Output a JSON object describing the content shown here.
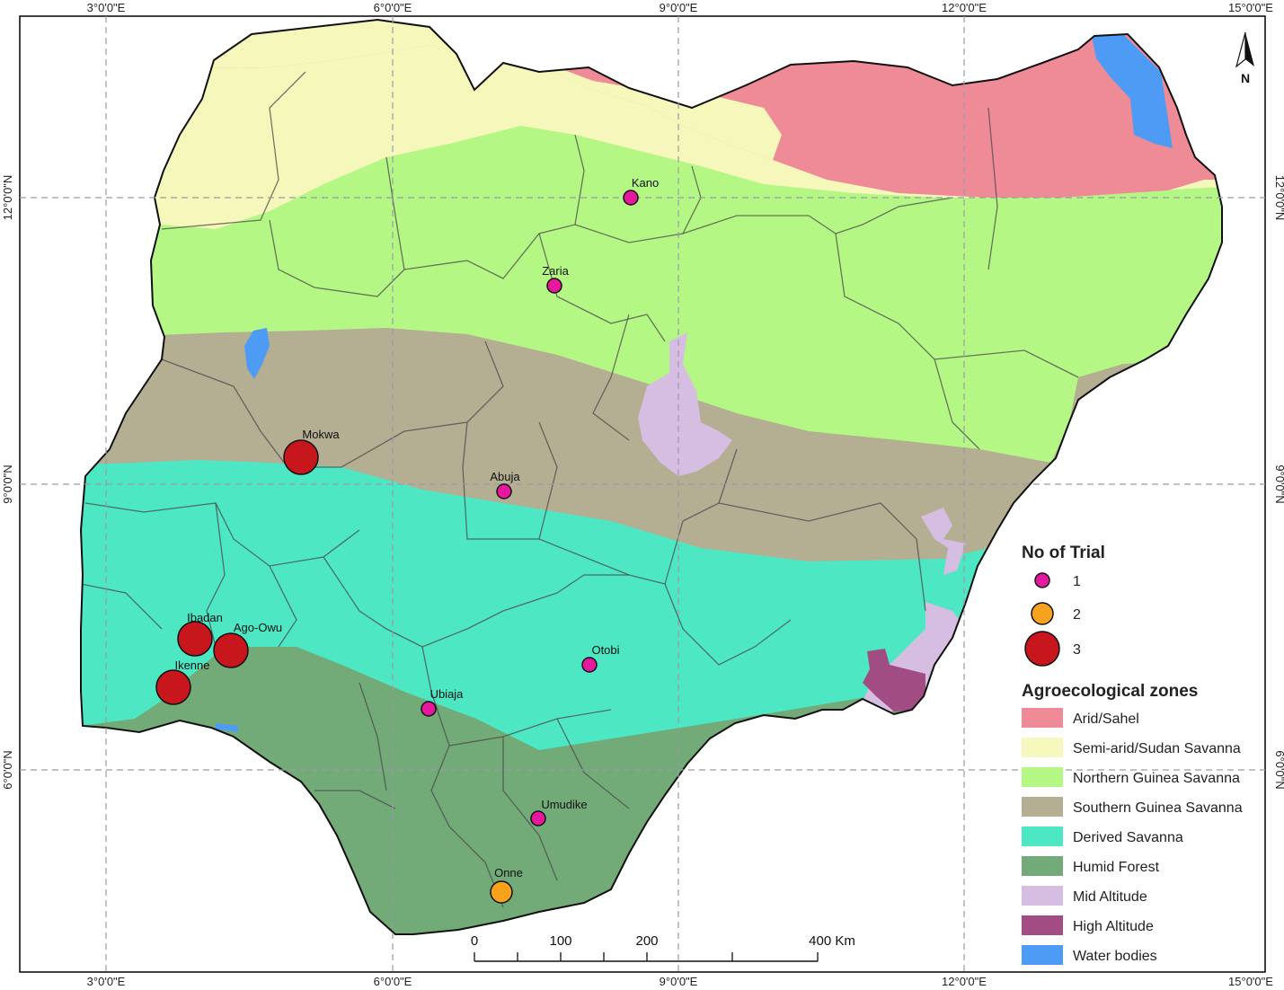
{
  "map": {
    "lon_ticks": [
      "3°0'0\"E",
      "6°0'0\"E",
      "9°0'0\"E",
      "12°0'0\"E",
      "15°0'0\"E"
    ],
    "lat_ticks": [
      "12°0'0\"N",
      "9°0'0\"N",
      "6°0'0\"N"
    ],
    "north_arrow_label": "N",
    "scale_bar": {
      "labels": [
        "0",
        "100",
        "200",
        "400 Km"
      ]
    },
    "cities": [
      {
        "name": "Kano",
        "trials": 1
      },
      {
        "name": "Zaria",
        "trials": 1
      },
      {
        "name": "Mokwa",
        "trials": 3
      },
      {
        "name": "Abuja",
        "trials": 1
      },
      {
        "name": "Ibadan",
        "trials": 3
      },
      {
        "name": "Ago-Owu",
        "trials": 3
      },
      {
        "name": "Ikenne",
        "trials": 3
      },
      {
        "name": "Otobi",
        "trials": 1
      },
      {
        "name": "Ubiaja",
        "trials": 1
      },
      {
        "name": "Umudike",
        "trials": 1
      },
      {
        "name": "Onne",
        "trials": 2
      }
    ]
  },
  "legend": {
    "trial_title": "No of Trial",
    "trial_items": [
      {
        "label": "1",
        "color": "#e6199e"
      },
      {
        "label": "2",
        "color": "#f7a21c"
      },
      {
        "label": "3",
        "color": "#c8161d"
      }
    ],
    "zone_title": "Agroecological zones",
    "zones": [
      {
        "label": "Arid/Sahel",
        "color": "#ef8b96"
      },
      {
        "label": "Semi-arid/Sudan Savanna",
        "color": "#f6f7ba"
      },
      {
        "label": "Northern Guinea Savanna",
        "color": "#b5f784"
      },
      {
        "label": "Southern Guinea Savanna",
        "color": "#b4ae93"
      },
      {
        "label": "Derived Savanna",
        "color": "#4de7c3"
      },
      {
        "label": "Humid Forest",
        "color": "#72aa78"
      },
      {
        "label": "Mid Altitude",
        "color": "#d6bde2"
      },
      {
        "label": "High Altitude",
        "color": "#a14c83"
      },
      {
        "label": "Water bodies",
        "color": "#4e9bf5"
      }
    ]
  }
}
